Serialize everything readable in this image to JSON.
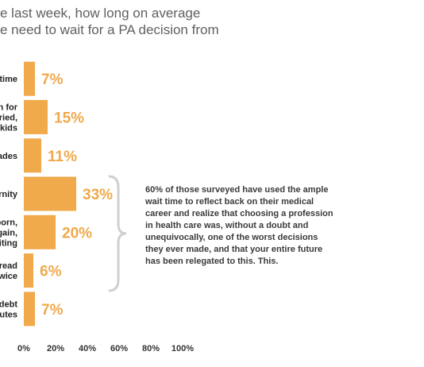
{
  "header": {
    "title_line1": "e last week, how long on average",
    "title_line2": "e need to wait for a PA decision from"
  },
  "annotation": {
    "text": "60% of those surveyed have used the ample wait time to reflect back on their medical career and realize that choosing a profession in health care was, without a doubt and unequivocally, one of the worst decisions they ever made, and that your entire future has been relegated to this.  This."
  },
  "colors": {
    "bar": "#f0a94b",
    "value_label": "#f0a94b",
    "axis_text": "#333333",
    "category_text": "#222222",
    "brace": "#d0d0d0"
  },
  "chart_data": {
    "type": "bar",
    "orientation": "horizontal",
    "categories": [
      [
        "time"
      ],
      [
        "n for",
        "ried,",
        "kids"
      ],
      [
        "ades"
      ],
      [
        "rnity"
      ],
      [
        "born,",
        "gain,",
        "iting"
      ],
      [
        "read",
        "wice"
      ],
      [
        "debt",
        "utes"
      ]
    ],
    "values": [
      7,
      15,
      11,
      33,
      20,
      6,
      7
    ],
    "value_labels": [
      "7%",
      "15%",
      "11%",
      "33%",
      "20%",
      "6%",
      "7%"
    ],
    "xlim": [
      0,
      100
    ],
    "xticks": [
      "0%",
      "20%",
      "40%",
      "60%",
      "80%",
      "100%"
    ],
    "xlabel": "",
    "ylabel": "",
    "grid": false,
    "legend": "none"
  }
}
